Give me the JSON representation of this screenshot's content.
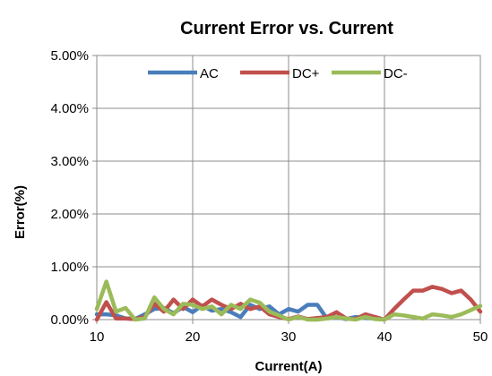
{
  "chart_data": {
    "type": "line",
    "title": "Current Error vs. Current",
    "xlabel": "Current(A)",
    "ylabel": "Error(%)",
    "xlim": [
      10,
      50
    ],
    "ylim": [
      0,
      5
    ],
    "x_ticks": [
      "10",
      "20",
      "30",
      "40",
      "50"
    ],
    "y_ticks": [
      "0.00%",
      "1.00%",
      "2.00%",
      "3.00%",
      "4.00%",
      "5.00%"
    ],
    "grid": "vertical",
    "legend_position": "top",
    "series": [
      {
        "name": "AC",
        "color": "#4a7ebb",
        "x": [
          10,
          11,
          12,
          13,
          14,
          15,
          16,
          17,
          18,
          19,
          20,
          21,
          22,
          23,
          24,
          25,
          26,
          27,
          28,
          29,
          30,
          31,
          32,
          33,
          34,
          35,
          36,
          37,
          38,
          39,
          40
        ],
        "values": [
          0.1,
          0.1,
          0.08,
          0.02,
          0.01,
          0.1,
          0.2,
          0.22,
          0.12,
          0.24,
          0.14,
          0.27,
          0.17,
          0.2,
          0.14,
          0.05,
          0.28,
          0.2,
          0.25,
          0.1,
          0.2,
          0.15,
          0.28,
          0.28,
          0.02,
          0.05,
          0.01,
          0.05,
          0.03,
          0.02,
          0.0
        ]
      },
      {
        "name": "DC+",
        "color": "#c0504d",
        "x": [
          10,
          11,
          12,
          13,
          14,
          15,
          16,
          17,
          18,
          19,
          20,
          21,
          22,
          23,
          24,
          25,
          26,
          27,
          28,
          29,
          30,
          31,
          32,
          33,
          34,
          35,
          36,
          37,
          38,
          39,
          40,
          41,
          42,
          43,
          44,
          45,
          46,
          47,
          48,
          49,
          50
        ],
        "values": [
          0.0,
          0.33,
          0.02,
          0.02,
          0.01,
          0.05,
          0.3,
          0.15,
          0.38,
          0.2,
          0.38,
          0.25,
          0.38,
          0.28,
          0.2,
          0.3,
          0.2,
          0.25,
          0.1,
          0.05,
          0.01,
          0.06,
          0.01,
          0.03,
          0.05,
          0.14,
          0.02,
          0.01,
          0.1,
          0.05,
          0.0,
          0.2,
          0.38,
          0.55,
          0.55,
          0.62,
          0.58,
          0.5,
          0.55,
          0.38,
          0.15
        ]
      },
      {
        "name": "DC-",
        "color": "#9bbb59",
        "x": [
          10,
          11,
          12,
          13,
          14,
          15,
          16,
          17,
          18,
          19,
          20,
          21,
          22,
          23,
          24,
          25,
          26,
          27,
          28,
          29,
          30,
          31,
          32,
          33,
          34,
          35,
          36,
          37,
          38,
          39,
          40,
          41,
          42,
          43,
          44,
          45,
          46,
          47,
          48,
          49,
          50
        ],
        "values": [
          0.2,
          0.72,
          0.15,
          0.22,
          0.0,
          0.02,
          0.42,
          0.2,
          0.1,
          0.3,
          0.28,
          0.2,
          0.25,
          0.1,
          0.28,
          0.2,
          0.38,
          0.32,
          0.15,
          0.08,
          0.0,
          0.05,
          0.0,
          0.0,
          0.02,
          0.05,
          0.02,
          0.0,
          0.05,
          0.01,
          0.0,
          0.1,
          0.08,
          0.05,
          0.02,
          0.1,
          0.08,
          0.05,
          0.1,
          0.18,
          0.26
        ]
      }
    ]
  }
}
